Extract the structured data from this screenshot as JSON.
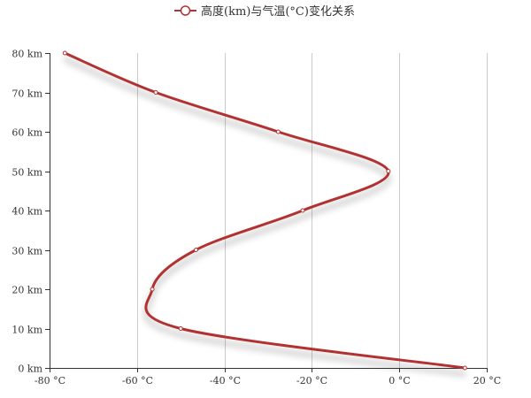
{
  "chart_data": {
    "type": "line",
    "title": "",
    "xlabel": "",
    "ylabel": "",
    "xlim": [
      -80,
      20
    ],
    "ylim": [
      0,
      80
    ],
    "x_ticks": [
      -80,
      -60,
      -40,
      -20,
      0,
      20
    ],
    "y_ticks": [
      0,
      10,
      20,
      30,
      40,
      50,
      60,
      70,
      80
    ],
    "x_unit": " °C",
    "y_unit": " km",
    "smooth": true,
    "grid": {
      "x": true,
      "y": false
    },
    "legend": {
      "position": "top-center"
    },
    "series": [
      {
        "name": "高度(km)与气温(°C)变化关系",
        "color": "#b23333",
        "points": [
          {
            "x": 15,
            "y": 0
          },
          {
            "x": -50,
            "y": 10
          },
          {
            "x": -56.5,
            "y": 20
          },
          {
            "x": -46.5,
            "y": 30
          },
          {
            "x": -22.1,
            "y": 40
          },
          {
            "x": -2.5,
            "y": 50
          },
          {
            "x": -27.7,
            "y": 60
          },
          {
            "x": -55.7,
            "y": 70
          },
          {
            "x": -76.5,
            "y": 80
          }
        ]
      }
    ]
  }
}
